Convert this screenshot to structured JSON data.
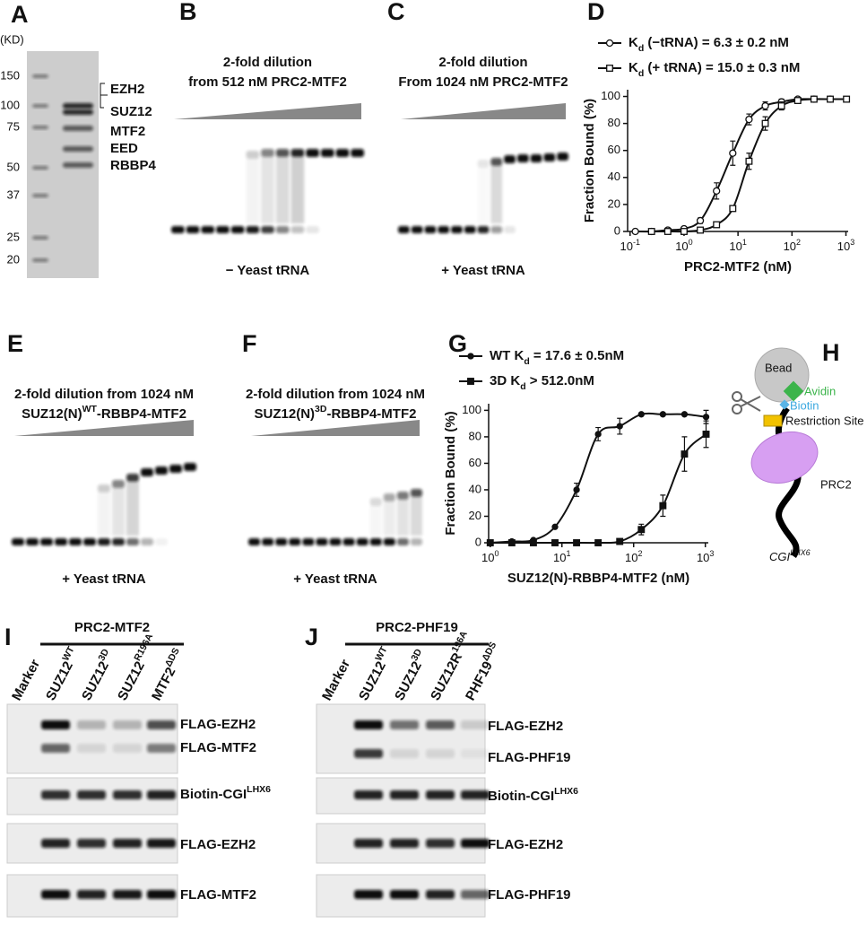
{
  "panels": {
    "A": {
      "letter": "A",
      "unit": "(KD)",
      "markers": [
        "150",
        "100",
        "75",
        "50",
        "37",
        "25",
        "20"
      ],
      "bands": [
        "EZH2",
        "SUZ12",
        "MTF2",
        "EED",
        "RBBP4"
      ]
    },
    "B": {
      "letter": "B",
      "title": [
        "2-fold dilution",
        "from 512 nM PRC2-MTF2"
      ],
      "condition": "− Yeast tRNA"
    },
    "C": {
      "letter": "C",
      "title": [
        "2-fold dilution",
        "From 1024 nM PRC2-MTF2"
      ],
      "condition": "+ Yeast tRNA"
    },
    "E": {
      "letter": "E",
      "title": "2-fold dilution from 1024 nM",
      "construct": {
        "base": "SUZ12(N)",
        "sup": "WT",
        "rest": "-RBBP4-MTF2"
      },
      "condition": "+ Yeast tRNA"
    },
    "F": {
      "letter": "F",
      "title": "2-fold dilution from 1024 nM",
      "construct": {
        "base": "SUZ12(N)",
        "sup": "3D",
        "rest": "-RBBP4-MTF2"
      },
      "condition": "+ Yeast tRNA"
    },
    "H": {
      "letter": "H",
      "bead": "Bead",
      "avidin": "Avidin",
      "biotin": "Biotin",
      "site": "Restriction Site",
      "protein": "PRC2",
      "dna": {
        "base": "CGI",
        "sup": "LHX6"
      }
    },
    "I": {
      "letter": "I",
      "complex": "PRC2-MTF2",
      "lanes": [
        "Marker",
        {
          "base": "SUZ12",
          "sup": "WT"
        },
        {
          "base": "SUZ12",
          "sup": "3D"
        },
        {
          "base": "SUZ12",
          "sup": "R196A"
        },
        {
          "base": "MTF2",
          "sup": "ΔDS"
        }
      ],
      "blots": [
        "FLAG-EZH2",
        "FLAG-MTF2",
        {
          "base": "Biotin-CGI",
          "sup": "LHX6"
        },
        "FLAG-EZH2",
        "FLAG-MTF2"
      ]
    },
    "J": {
      "letter": "J",
      "complex": "PRC2-PHF19",
      "lanes": [
        "Marker",
        {
          "base": "SUZ12",
          "sup": "WT"
        },
        {
          "base": "SUZ12",
          "sup": "3D"
        },
        {
          "base": "SUZ12R",
          "sup": "196A"
        },
        {
          "base": "PHF19",
          "sup": "ΔDS"
        }
      ],
      "blots": [
        "FLAG-EZH2",
        "FLAG-PHF19",
        {
          "base": "Biotin-CGI",
          "sup": "LHX6"
        },
        "FLAG-EZH2",
        "FLAG-PHF19"
      ]
    }
  },
  "chart_data": [
    {
      "type": "scatter",
      "panel": "D",
      "log_x": true,
      "xlabel": "PRC2-MTF2 (nM)",
      "ylabel": "Fraction Bound (%)",
      "xlim": [
        0.09,
        1100
      ],
      "ylim": [
        0,
        105
      ],
      "xticks": [
        {
          "value": 0.1,
          "label": "10",
          "exp": "-1"
        },
        {
          "value": 1,
          "label": "10",
          "exp": "0"
        },
        {
          "value": 10,
          "label": "10",
          "exp": "1"
        },
        {
          "value": 100,
          "label": "10",
          "exp": "2"
        },
        {
          "value": 1000,
          "label": "10",
          "exp": "3"
        }
      ],
      "yticks": [
        0,
        20,
        40,
        60,
        80,
        100
      ],
      "series": [
        {
          "label": {
            "base": "K",
            "sub": "d",
            "rest": " (−tRNA) = 6.3 ± 0.2 nM"
          },
          "marker": "circle-open",
          "color": "#111",
          "x": [
            0.125,
            0.25,
            0.5,
            1,
            2,
            4,
            8,
            16,
            32,
            64,
            128,
            256,
            512
          ],
          "values": [
            0,
            0,
            1,
            2,
            8,
            30,
            58,
            83,
            93,
            96,
            98,
            98,
            98
          ],
          "errors": [
            0,
            0,
            0,
            1,
            2,
            6,
            9,
            4,
            3,
            2,
            1,
            1,
            1
          ]
        },
        {
          "label": {
            "base": "K",
            "sub": "d",
            "rest": " (+ tRNA) = 15.0 ± 0.3 nM"
          },
          "marker": "square-open",
          "color": "#111",
          "x": [
            0.25,
            0.5,
            1,
            2,
            4,
            8,
            16,
            32,
            64,
            128,
            256,
            512,
            1024
          ],
          "values": [
            0,
            0,
            0,
            1,
            5,
            17,
            52,
            80,
            93,
            97,
            98,
            98,
            98
          ],
          "errors": [
            0,
            0,
            0,
            0,
            1,
            2,
            6,
            5,
            3,
            1,
            1,
            1,
            1
          ]
        }
      ]
    },
    {
      "type": "scatter",
      "panel": "G",
      "log_x": true,
      "xlabel": "SUZ12(N)-RBBP4-MTF2 (nM)",
      "ylabel": "Fraction Bound (%)",
      "xlim": [
        0.95,
        1100
      ],
      "ylim": [
        0,
        105
      ],
      "xticks": [
        {
          "value": 1,
          "label": "10",
          "exp": "0"
        },
        {
          "value": 10,
          "label": "10",
          "exp": "1"
        },
        {
          "value": 100,
          "label": "10",
          "exp": "2"
        },
        {
          "value": 1000,
          "label": "10",
          "exp": "3"
        }
      ],
      "yticks": [
        0,
        20,
        40,
        60,
        80,
        100
      ],
      "series": [
        {
          "label": {
            "base": "WT K",
            "sub": "d",
            "rest": " = 17.6 ± 0.5nM"
          },
          "marker": "circle",
          "color": "#111",
          "x": [
            1,
            2,
            4,
            8,
            16,
            32,
            64,
            128,
            256,
            512,
            1024
          ],
          "values": [
            0,
            1,
            2,
            12,
            40,
            82,
            88,
            97,
            97,
            97,
            95
          ],
          "errors": [
            0,
            0,
            0,
            1,
            5,
            5,
            6,
            1,
            1,
            1,
            5
          ]
        },
        {
          "label": {
            "base": "3D  K",
            "sub": "d",
            "rest": " > 512.0nM"
          },
          "marker": "square",
          "color": "#111",
          "x": [
            1,
            2,
            4,
            8,
            16,
            32,
            64,
            128,
            256,
            512,
            1024
          ],
          "values": [
            0,
            0,
            0,
            0,
            0,
            0,
            1,
            10,
            28,
            67,
            82
          ],
          "errors": [
            0,
            0,
            0,
            0,
            0,
            0,
            1,
            4,
            8,
            13,
            10
          ]
        }
      ]
    }
  ]
}
